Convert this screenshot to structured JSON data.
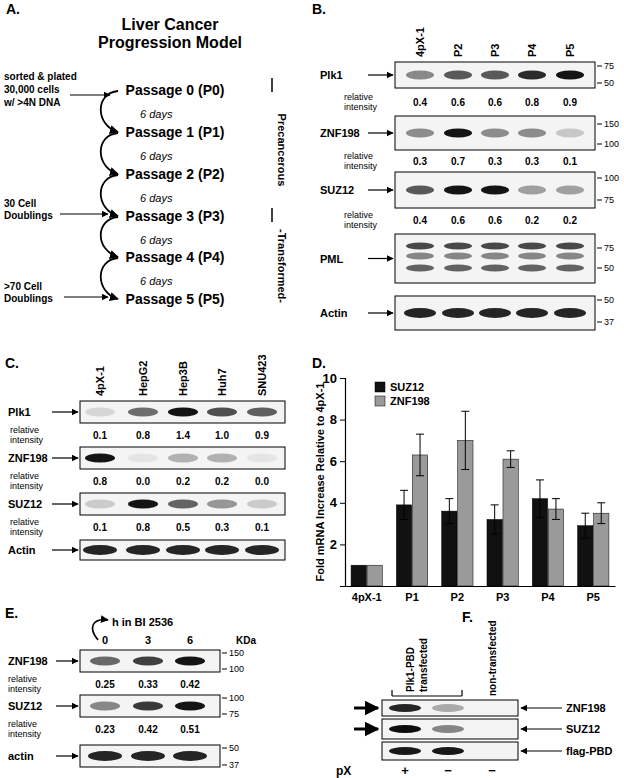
{
  "chart_data": {
    "type": "bar",
    "label": "D.",
    "categories": [
      "4pX-1",
      "P1",
      "P2",
      "P3",
      "P4",
      "P5"
    ],
    "series": [
      {
        "name": "SUZ12",
        "color": "#111111",
        "values": [
          1,
          3.9,
          3.6,
          3.2,
          4.2,
          2.9
        ],
        "errors": [
          null,
          0.7,
          0.6,
          0.7,
          0.9,
          0.6
        ]
      },
      {
        "name": "ZNF198",
        "color": "#9a9a9a",
        "values": [
          1,
          6.3,
          7.0,
          6.1,
          3.7,
          3.5
        ],
        "errors": [
          null,
          1.0,
          1.4,
          0.4,
          0.5,
          0.5
        ]
      }
    ],
    "y_label": "Fold mRNA Increase Relative to 4pX-1",
    "ylim": [
      0,
      10
    ],
    "yticks": [
      2,
      4,
      6,
      8,
      10
    ],
    "legend": "top-left",
    "grid": false
  },
  "panels": {
    "A": {
      "label": "A.",
      "title": [
        "Liver Cancer",
        "Progression Model"
      ],
      "passages": [
        "Passage 0 (P0)",
        "Passage 1 (P1)",
        "Passage 2 (P2)",
        "Passage 3 (P3)",
        "Passage 4 (P4)",
        "Passage 5 (P5)"
      ],
      "intervals": [
        "6 days",
        "6 days",
        "6 days",
        "6 days",
        "6 days"
      ],
      "notes": [
        [
          "sorted & plated",
          "30,000 cells",
          "w/ >4N DNA"
        ],
        [
          "30 Cell",
          "Doublings"
        ],
        [
          ">70 Cell",
          "Doublings"
        ]
      ],
      "stages": [
        "Precancerous",
        "-Transformed-"
      ]
    },
    "B": {
      "label": "B.",
      "lanes": [
        "4pX-1",
        "P2",
        "P3",
        "P4",
        "P5"
      ],
      "intensity_label": [
        "relative",
        "intensity"
      ],
      "blots": [
        {
          "name": "Plk1",
          "intensity": [
            0.4,
            0.6,
            0.6,
            0.8,
            0.9
          ],
          "intensity_labels": [
            "0.4",
            "0.6",
            "0.6",
            "0.8",
            "0.9"
          ],
          "markers": [
            75,
            50
          ]
        },
        {
          "name": "ZNF198",
          "intensity": [
            0.3,
            0.7,
            0.3,
            0.3,
            0.1
          ],
          "intensity_labels": [
            "0.3",
            "0.7",
            "0.3",
            "0.3",
            "0.1"
          ],
          "markers": [
            150,
            100
          ]
        },
        {
          "name": "SUZ12",
          "intensity": [
            0.4,
            0.6,
            0.6,
            0.2,
            0.2
          ],
          "intensity_labels": [
            "0.4",
            "0.6",
            "0.6",
            "0.2",
            "0.2"
          ],
          "markers": [
            100,
            75
          ]
        },
        {
          "name": "PML",
          "markers": [
            75,
            50
          ]
        },
        {
          "name": "Actin",
          "markers": [
            50,
            37
          ]
        }
      ]
    },
    "C": {
      "label": "C.",
      "lanes": [
        "4pX-1",
        "HepG2",
        "Hep3B",
        "Huh7",
        "SNU423"
      ],
      "intensity_label": [
        "relative",
        "intensity"
      ],
      "blots": [
        {
          "name": "Plk1",
          "intensity": [
            0.1,
            0.8,
            1.4,
            1.0,
            0.9
          ],
          "intensity_labels": [
            "0.1",
            "0.8",
            "1.4",
            "1.0",
            "0.9"
          ]
        },
        {
          "name": "ZNF198",
          "intensity": [
            0.8,
            0.0,
            0.2,
            0.2,
            0.0
          ],
          "intensity_labels": [
            "0.8",
            "0.0",
            "0.2",
            "0.2",
            "0.0"
          ]
        },
        {
          "name": "SUZ12",
          "intensity": [
            0.1,
            0.8,
            0.5,
            0.3,
            0.1
          ],
          "intensity_labels": [
            "0.1",
            "0.8",
            "0.5",
            "0.3",
            "0.1"
          ]
        },
        {
          "name": "Actin"
        }
      ]
    },
    "E": {
      "label": "E.",
      "header": "h in BI 2536",
      "lanes": [
        0,
        3,
        6
      ],
      "unit": "KDa",
      "intensity_label": [
        "relative",
        "intensity"
      ],
      "blots": [
        {
          "name": "ZNF198",
          "intensity": [
            0.25,
            0.33,
            0.42
          ],
          "intensity_labels": [
            "0.25",
            "0.33",
            "0.42"
          ],
          "markers": [
            150,
            100
          ]
        },
        {
          "name": "SUZ12",
          "intensity": [
            0.23,
            0.42,
            0.51
          ],
          "intensity_labels": [
            "0.23",
            "0.42",
            "0.51"
          ],
          "markers": [
            100,
            75
          ]
        },
        {
          "name": "actin",
          "markers": [
            50,
            37
          ]
        }
      ]
    },
    "F": {
      "label": "F.",
      "transfected": [
        "Plk1-PBD",
        "transfected"
      ],
      "untransfected": "non-transfected",
      "blots": [
        "ZNF198",
        "SUZ12",
        "flag-PBD"
      ],
      "condition": "pX",
      "conditions": [
        "+",
        "−",
        "−"
      ]
    }
  }
}
